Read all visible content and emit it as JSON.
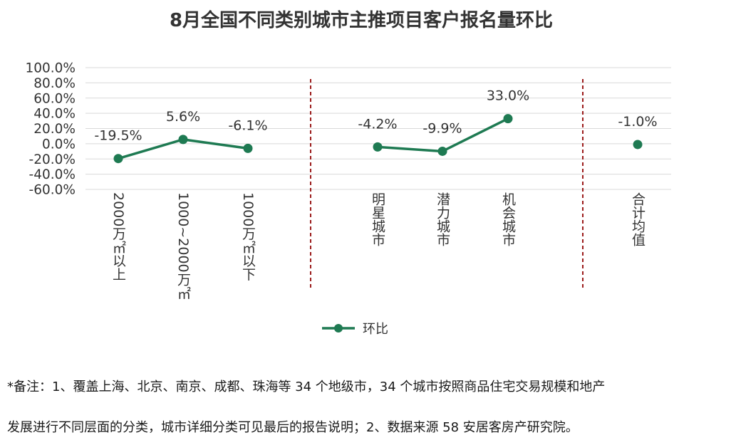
{
  "chart_data": {
    "type": "line",
    "title": "8月全国不同类别城市主推项目客户报名量环比",
    "categories": [
      "2000万㎡以上",
      "1000~2000万㎡",
      "1000万㎡以下",
      "明星城市",
      "潜力城市",
      "机会城市",
      "合计均值"
    ],
    "series": [
      {
        "name": "环比",
        "values": [
          -19.5,
          5.6,
          -6.1,
          -4.2,
          -9.9,
          33.0,
          -1.0
        ],
        "labels": [
          "-19.5%",
          "5.6%",
          "-6.1%",
          "-4.2%",
          "-9.9%",
          "33.0%",
          "-1.0%"
        ],
        "color": "#1e7a52"
      }
    ],
    "line_segments": [
      [
        0,
        2
      ],
      [
        3,
        5
      ]
    ],
    "ylim": [
      -60,
      100
    ],
    "yticks": [
      100,
      80,
      60,
      40,
      20,
      0,
      -20,
      -40,
      -60
    ],
    "ytick_labels": [
      "100.0%",
      "80.0%",
      "60.0%",
      "40.0%",
      "20.0%",
      "0.0%",
      "-20.0%",
      "-40.0%",
      "-60.0%"
    ],
    "grid": true,
    "legend": "bottom-center",
    "separator_color": "#9b1b1b"
  },
  "notes": [
    "*备注：1、覆盖上海、北京、南京、成都、珠海等 34 个地级市，34 个城市按照商品住宅交易规模和地产",
    "发展进行不同层面的分类，城市详细分类可见最后的报告说明；2、数据来源 58 安居客房产研究院。"
  ]
}
